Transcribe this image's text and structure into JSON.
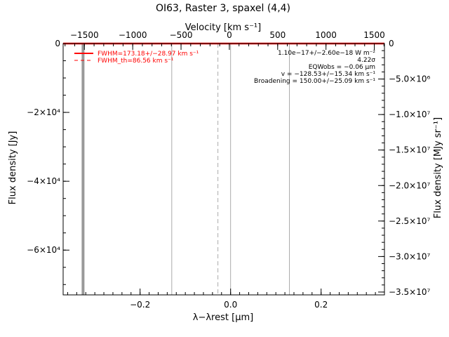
{
  "chart_data": {
    "type": "line",
    "title": "OI63, Raster 3, spaxel (4,4)",
    "x_axis": {
      "label": "λ−λrest [µm]",
      "range": [
        -0.37,
        0.34
      ],
      "ticks": [
        {
          "value": -0.2,
          "label": "−0.2"
        },
        {
          "value": 0.0,
          "label": "0.0"
        },
        {
          "value": 0.2,
          "label": "0.2"
        }
      ]
    },
    "top_axis": {
      "label": "Velocity [km s⁻¹]",
      "range": [
        -1720,
        1605
      ],
      "ticks": [
        {
          "value": -1500,
          "label": "−1500"
        },
        {
          "value": -1000,
          "label": "−1000"
        },
        {
          "value": -500,
          "label": "−500"
        },
        {
          "value": 0,
          "label": "0"
        },
        {
          "value": 500,
          "label": "500"
        },
        {
          "value": 1000,
          "label": "1000"
        },
        {
          "value": 1500,
          "label": "1500"
        }
      ]
    },
    "y_axis": {
      "label": "Flux density [Jy]",
      "range": [
        -73000,
        0
      ],
      "ticks": [
        {
          "value": 0,
          "label": "0"
        },
        {
          "value": -20000,
          "label": "−2×10⁴"
        },
        {
          "value": -40000,
          "label": "−4×10⁴"
        },
        {
          "value": -60000,
          "label": "−6×10⁴"
        }
      ]
    },
    "right_axis": {
      "label": "Flux density [MJy sr⁻¹]",
      "range": [
        -35400000,
        0
      ],
      "ticks": [
        {
          "value": 0,
          "label": "0"
        },
        {
          "value": -5000000,
          "label": "−5.0×10⁶"
        },
        {
          "value": -10000000,
          "label": "−1.0×10⁷"
        },
        {
          "value": -15000000,
          "label": "−1.5×10⁷"
        },
        {
          "value": -20000000,
          "label": "−2.0×10⁷"
        },
        {
          "value": -25000000,
          "label": "−2.5×10⁷"
        },
        {
          "value": -30000000,
          "label": "−3.0×10⁷"
        },
        {
          "value": -35000000,
          "label": "−3.5×10⁷"
        }
      ]
    },
    "series": [
      {
        "name": "FWHM=173.18+/−28.97 km s⁻¹",
        "x": [
          -0.37,
          0.34
        ],
        "y": [
          0,
          0
        ],
        "color": "#ff0000",
        "style": "solid"
      }
    ],
    "legend": {
      "position": "top-left",
      "entries": [
        {
          "label": "FWHM=173.18+/−28.97 km s⁻¹",
          "color": "#ff0000",
          "style": "solid"
        },
        {
          "label": "FWHM_th=86.56 km s⁻¹",
          "color": "#ff0000",
          "style": "dashed"
        }
      ]
    },
    "annotations": [
      "1.10e−17+/−2.60e−18 W m⁻²",
      "4.22σ",
      "EQWobs = −0.06 µm",
      "v = −128.53+/−15.34 km s⁻¹",
      "Broadening = 150.00+/−25.09 km s⁻¹"
    ],
    "vertical_lines": [
      {
        "x": -0.326,
        "color": "#999999",
        "style": "solid",
        "kind": "thick"
      },
      {
        "x": -0.13,
        "color": "#aaaaaa",
        "style": "solid",
        "kind": "thin"
      },
      {
        "x": -0.028,
        "color": "#aaaaaa",
        "style": "dashed",
        "kind": "thin"
      },
      {
        "x": 0.0,
        "color": "#aaaaaa",
        "style": "solid",
        "kind": "thin"
      },
      {
        "x": 0.13,
        "color": "#aaaaaa",
        "style": "solid",
        "kind": "thin"
      }
    ],
    "grid": false
  }
}
